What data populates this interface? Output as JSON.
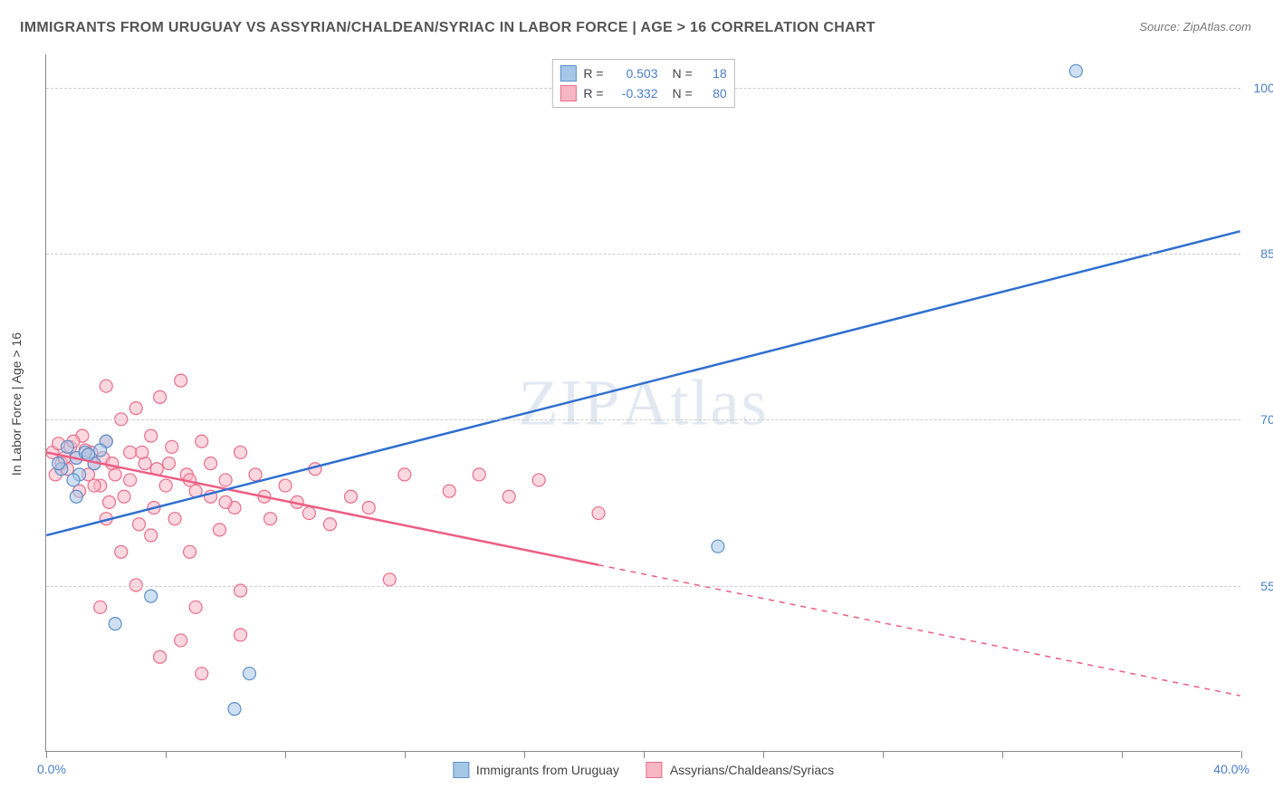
{
  "title": "IMMIGRANTS FROM URUGUAY VS ASSYRIAN/CHALDEAN/SYRIAC IN LABOR FORCE | AGE > 16 CORRELATION CHART",
  "source": "Source: ZipAtlas.com",
  "watermark": "ZIPAtlas",
  "y_axis_title": "In Labor Force | Age > 16",
  "colors": {
    "blue_fill": "#a7c7e7",
    "blue_stroke": "#5b8fc9",
    "blue_line": "#2f6fd0",
    "pink_fill": "#f7b6c4",
    "pink_stroke": "#e86d8a",
    "pink_line": "#ee5d83",
    "text_axis": "#4a7fc9",
    "grid": "#cccccc",
    "title_color": "#555555"
  },
  "xlim": [
    0.0,
    40.0
  ],
  "ylim": [
    40.0,
    103.0
  ],
  "x_ticks": [
    0.0,
    4.0,
    8.0,
    12.0,
    16.0,
    20.0,
    24.0,
    28.0,
    32.0,
    36.0,
    40.0
  ],
  "x_tick_labels": {
    "min": "0.0%",
    "max": "40.0%"
  },
  "y_gridlines": [
    55.0,
    70.0,
    85.0,
    100.0
  ],
  "y_tick_labels": [
    "55.0%",
    "70.0%",
    "85.0%",
    "100.0%"
  ],
  "series": [
    {
      "name": "Immigrants from Uruguay",
      "legend_label": "Immigrants from Uruguay",
      "color_fill": "#a7c7e7",
      "color_stroke": "#5b8fc9",
      "R": "0.503",
      "N": "18",
      "marker_radius": 7,
      "points": [
        [
          34.5,
          101.5
        ],
        [
          22.5,
          58.5
        ],
        [
          1.0,
          66.5
        ],
        [
          1.3,
          67.0
        ],
        [
          1.0,
          63.0
        ],
        [
          0.5,
          65.5
        ],
        [
          3.5,
          54.0
        ],
        [
          2.3,
          51.5
        ],
        [
          6.8,
          47.0
        ],
        [
          6.3,
          43.8
        ],
        [
          1.6,
          66.0
        ],
        [
          2.0,
          68.0
        ],
        [
          1.1,
          65.0
        ],
        [
          0.7,
          67.5
        ],
        [
          0.4,
          66.0
        ],
        [
          1.8,
          67.2
        ],
        [
          0.9,
          64.5
        ],
        [
          1.4,
          66.8
        ]
      ],
      "trend": {
        "x1": 0.0,
        "y1": 59.5,
        "x2": 40.0,
        "y2": 87.0,
        "dashed": false
      }
    },
    {
      "name": "Assyrians/Chaldeans/Syriacs",
      "legend_label": "Assyrians/Chaldeans/Syriacs",
      "color_fill": "#f7b6c4",
      "color_stroke": "#e86d8a",
      "R": "-0.332",
      "N": "80",
      "marker_radius": 7,
      "points": [
        [
          0.2,
          67.0
        ],
        [
          0.5,
          66.0
        ],
        [
          0.7,
          65.5
        ],
        [
          0.8,
          67.5
        ],
        [
          1.0,
          66.5
        ],
        [
          1.1,
          63.5
        ],
        [
          1.2,
          68.5
        ],
        [
          1.4,
          65.0
        ],
        [
          1.5,
          67.0
        ],
        [
          1.6,
          66.0
        ],
        [
          1.8,
          64.0
        ],
        [
          2.0,
          73.0
        ],
        [
          2.0,
          68.0
        ],
        [
          2.1,
          62.5
        ],
        [
          2.3,
          65.0
        ],
        [
          2.5,
          70.0
        ],
        [
          2.6,
          63.0
        ],
        [
          2.8,
          67.0
        ],
        [
          3.0,
          71.0
        ],
        [
          3.1,
          60.5
        ],
        [
          3.3,
          66.0
        ],
        [
          3.5,
          68.5
        ],
        [
          3.6,
          62.0
        ],
        [
          3.8,
          72.0
        ],
        [
          4.0,
          64.0
        ],
        [
          4.2,
          67.5
        ],
        [
          4.3,
          61.0
        ],
        [
          4.5,
          73.5
        ],
        [
          4.7,
          65.0
        ],
        [
          5.0,
          63.5
        ],
        [
          5.2,
          68.0
        ],
        [
          5.5,
          66.0
        ],
        [
          5.8,
          60.0
        ],
        [
          6.0,
          64.5
        ],
        [
          6.3,
          62.0
        ],
        [
          6.5,
          67.0
        ],
        [
          6.5,
          50.5
        ],
        [
          7.0,
          65.0
        ],
        [
          7.3,
          63.0
        ],
        [
          7.5,
          61.0
        ],
        [
          8.0,
          64.0
        ],
        [
          8.4,
          62.5
        ],
        [
          9.0,
          65.5
        ],
        [
          9.5,
          60.5
        ],
        [
          10.2,
          63.0
        ],
        [
          10.8,
          62.0
        ],
        [
          11.5,
          55.5
        ],
        [
          12.0,
          65.0
        ],
        [
          13.5,
          63.5
        ],
        [
          14.5,
          65.0
        ],
        [
          15.5,
          63.0
        ],
        [
          18.5,
          61.5
        ],
        [
          3.8,
          48.5
        ],
        [
          4.5,
          50.0
        ],
        [
          5.0,
          53.0
        ],
        [
          1.8,
          53.0
        ],
        [
          2.5,
          58.0
        ],
        [
          3.0,
          55.0
        ],
        [
          0.3,
          65.0
        ],
        [
          0.4,
          67.8
        ],
        [
          0.6,
          66.5
        ],
        [
          0.9,
          68.0
        ],
        [
          1.3,
          67.2
        ],
        [
          1.6,
          64.0
        ],
        [
          1.9,
          66.5
        ],
        [
          2.2,
          66.0
        ],
        [
          2.8,
          64.5
        ],
        [
          3.2,
          67.0
        ],
        [
          3.7,
          65.5
        ],
        [
          4.1,
          66.0
        ],
        [
          4.8,
          64.5
        ],
        [
          5.5,
          63.0
        ],
        [
          6.0,
          62.5
        ],
        [
          8.8,
          61.5
        ],
        [
          16.5,
          64.5
        ],
        [
          5.2,
          47.0
        ],
        [
          2.0,
          61.0
        ],
        [
          3.5,
          59.5
        ],
        [
          4.8,
          58.0
        ],
        [
          6.5,
          54.5
        ]
      ],
      "trend": {
        "x1": 0.0,
        "y1": 67.0,
        "x2": 40.0,
        "y2": 45.0,
        "solid_until_x": 18.5
      }
    }
  ],
  "legend_top_labels": {
    "R": "R =",
    "N": "N ="
  }
}
